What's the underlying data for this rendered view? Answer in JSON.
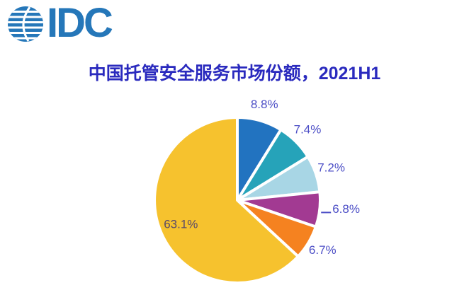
{
  "logo": {
    "text": "IDC",
    "color": "#2577b9"
  },
  "header": {
    "title": "中国托管安全服务市场份额，2021H1",
    "title_color": "#2a2abe"
  },
  "chart_data": {
    "type": "pie",
    "title": "中国托管安全服务市场份额，2021H1",
    "start_angle_deg": 0,
    "direction": "clockwise",
    "total": 100.0,
    "slices": [
      {
        "label": "8.8%",
        "value": 8.8,
        "color": "#2273c0",
        "label_position": "outside"
      },
      {
        "label": "7.4%",
        "value": 7.4,
        "color": "#26a3b9",
        "label_position": "outside"
      },
      {
        "label": "7.2%",
        "value": 7.2,
        "color": "#a8d6e5",
        "label_position": "outside"
      },
      {
        "label": "6.8%",
        "value": 6.8,
        "color": "#a23a92",
        "label_position": "outside",
        "leader_line": true
      },
      {
        "label": "6.7%",
        "value": 6.7,
        "color": "#f58220",
        "label_position": "outside"
      },
      {
        "label": "63.1%",
        "value": 63.1,
        "color": "#f6c22e",
        "label_position": "inside"
      }
    ],
    "label_color_outside": "#4c4ec6",
    "label_color_inside": "#5a4a68",
    "slice_border_color": "#ffffff",
    "legend": false,
    "grid": false
  }
}
